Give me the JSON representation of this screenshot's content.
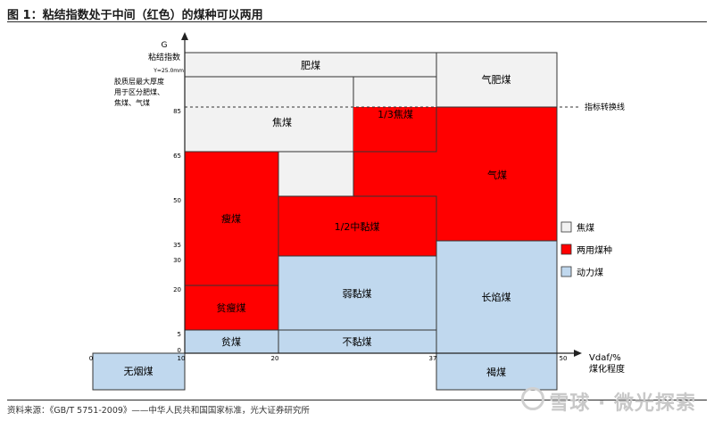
{
  "figure_title": "图 1：粘结指数处于中间（红色）的煤种可以两用",
  "y_axis": {
    "letter": "G",
    "name": "粘结指数",
    "note_value": "Y=25.0mm",
    "note_text": [
      "胶质层最大厚度",
      "用于区分肥煤、",
      "焦煤、气煤"
    ],
    "ticks": [
      "0",
      "5",
      "20",
      "30",
      "35",
      "50",
      "65",
      "85"
    ]
  },
  "x_axis": {
    "name_line1": "Vdaf/%",
    "name_line2": "煤化程度",
    "ticks": [
      "0",
      "10",
      "20",
      "37",
      "50"
    ]
  },
  "regions": {
    "feimei": "肥煤",
    "qifeimei": "气肥煤",
    "jiaomei": "焦煤",
    "one_third_jiaomei": "1/3焦煤",
    "shoumei": "瘦煤",
    "half_zhongnianmei": "1/2中黏煤",
    "qimei": "气煤",
    "pinshoumei": "贫瘦煤",
    "ruonianmei": "弱黏煤",
    "changyanmei": "长焰煤",
    "pinmei": "贫煤",
    "bunianmei": "不黏煤",
    "wuyanmei": "无烟煤",
    "hemei": "褐煤"
  },
  "annotation_line": "指标转换线",
  "legend": [
    {
      "label": "焦煤",
      "color": "#f2f2f2"
    },
    {
      "label": "两用煤种",
      "color": "#ff0000"
    },
    {
      "label": "动力煤",
      "color": "#c0d8ee"
    }
  ],
  "colors": {
    "red": "#ff0000",
    "blue": "#c0d8ee",
    "grey": "#f2f2f2"
  },
  "source": "资料来源：《GB/T 5751-2009》——中华人民共和国国家标准，光大证券研究所",
  "watermark": "雪球 · 微光探索"
}
